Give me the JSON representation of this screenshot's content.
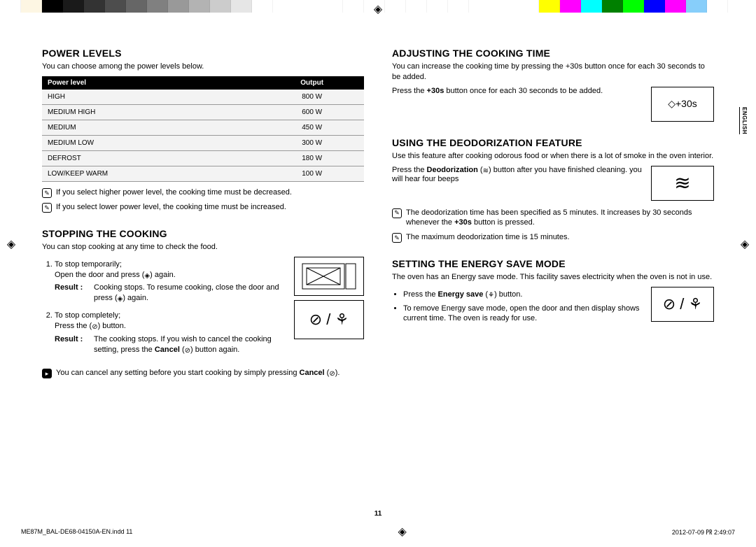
{
  "colorbar": {
    "top": [
      "#ffffff",
      "#fdf6e3",
      "#000000",
      "#1a1a1a",
      "#333333",
      "#4d4d4d",
      "#666666",
      "#808080",
      "#999999",
      "#b3b3b3",
      "#cccccc",
      "#e6e6e6",
      "#ffffff",
      "#ffffff",
      "#ffffff",
      "#ffffff",
      "#ffffff",
      "#ffffff",
      "#ffffff",
      "#ffffff",
      "#ffffff",
      "#ffff00",
      "#ff00ff",
      "#00ffff",
      "#008000",
      "#00ff00",
      "#0000ff",
      "#ff00ff",
      "#87cefa",
      "#ffffff"
    ],
    "widths": [
      30,
      30,
      30,
      30,
      30,
      30,
      30,
      30,
      30,
      30,
      30,
      30,
      30,
      100,
      30,
      30,
      30,
      30,
      30,
      30,
      100,
      30,
      30,
      30,
      30,
      30,
      30,
      30,
      30,
      30
    ]
  },
  "side_tab": "ENGLISH",
  "sections": {
    "power": {
      "title": "POWER LEVELS",
      "intro": "You can choose among the power levels below.",
      "table": {
        "headers": [
          "Power level",
          "Output"
        ],
        "rows": [
          [
            "HIGH",
            "800 W"
          ],
          [
            "MEDIUM HIGH",
            "600 W"
          ],
          [
            "MEDIUM",
            "450 W"
          ],
          [
            "MEDIUM LOW",
            "300 W"
          ],
          [
            "DEFROST",
            "180 W"
          ],
          [
            "LOW/KEEP WARM",
            "100 W"
          ]
        ]
      },
      "notes": [
        "If you select higher power level, the cooking time must be decreased.",
        "If you select lower power level, the cooking time must be increased."
      ]
    },
    "stopping": {
      "title": "STOPPING THE COOKING",
      "intro": "You can stop cooking at any time to check the food.",
      "step1": {
        "line": "To stop temporarily;",
        "line2_a": "Open the door and press (",
        "line2_b": ") again.",
        "result_a": "Cooking stops. To resume cooking, close the door and press (",
        "result_b": ") again."
      },
      "step2": {
        "line": "To stop completely;",
        "line2_a": "Press the (",
        "line2_b": ") button.",
        "result_a": "The cooking stops. If you wish to cancel the cooking setting, press the ",
        "result_cancel": "Cancel",
        "result_b": " (",
        "result_c": ") button again."
      },
      "tip_a": "You can cancel any setting before you start cooking by simply pressing ",
      "tip_cancel": "Cancel",
      "tip_b": " (",
      "tip_c": ").",
      "result_label": "Result :",
      "icon_label": "⊘ / ⚘"
    },
    "adjusting": {
      "title": "ADJUSTING THE COOKING TIME",
      "intro": "You can increase the cooking time by pressing the +30s button once for each 30 seconds to be added.",
      "body_a": "Press the ",
      "body_b": "+30s",
      "body_c": " button once for each 30 seconds to be added.",
      "icon_label": "◇+30s"
    },
    "deodor": {
      "title": "USING THE DEODORIZATION FEATURE",
      "intro": "Use this feature after cooking odorous food or when there is a lot of smoke in the oven interior.",
      "body_a": "Press the ",
      "body_b": "Deodorization",
      "body_c": " (",
      "body_d": ") button after you have finished cleaning. you will hear four beeps",
      "notes": [
        "The deodorization time has been specified as 5 minutes. It increases by 30 seconds whenever the +30s button is pressed.",
        "The maximum deodorization time is 15 minutes."
      ],
      "note1_bold": "+30s",
      "icon_label": "≋"
    },
    "energy": {
      "title": "SETTING THE ENERGY SAVE MODE",
      "intro": "The oven has an Energy save mode. This facility saves electricity when the oven is not in use.",
      "bullet1_a": "Press the ",
      "bullet1_b": "Energy save",
      "bullet1_c": " (",
      "bullet1_d": ") button.",
      "bullet2": "To remove Energy save mode, open the door and then display shows current time. The oven is ready for use.",
      "icon_label": "⊘ / ⚘"
    }
  },
  "page_number": "11",
  "footer": {
    "file": "ME87M_BAL-DE68-04150A-EN.indd   11",
    "date": "2012-07-09   ㏚ 2:49:07"
  },
  "icons": {
    "start": "◈",
    "stop": "⊘",
    "deodor_inline": "≋",
    "energy_inline": "⚘"
  }
}
